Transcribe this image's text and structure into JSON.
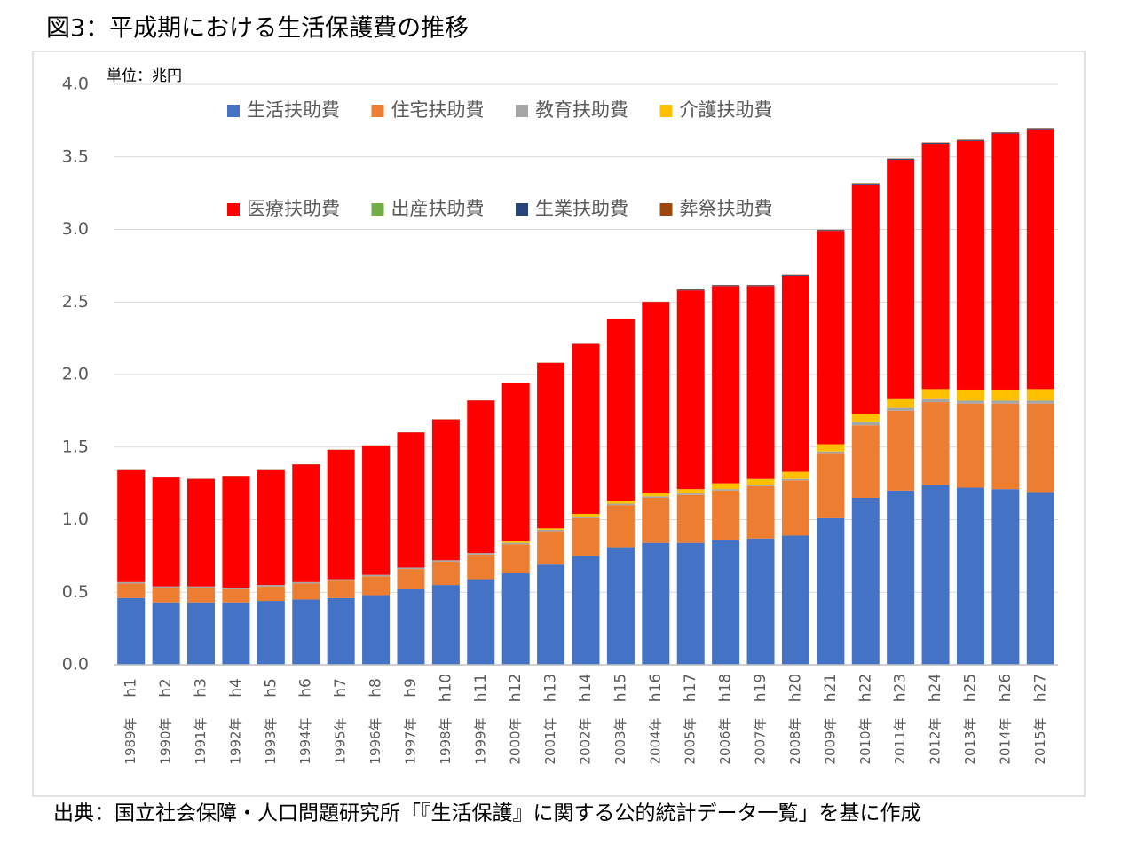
{
  "chart_data": {
    "type": "stacked-bar",
    "title": "図3：平成期における生活保護費の推移",
    "unit": "単位：兆円",
    "source": "出典：国立社会保障・人口問題研究所「『生活保護』に関する公的統計データ一覧」を基に作成",
    "categories": [
      "h1",
      "h2",
      "h3",
      "h4",
      "h5",
      "h6",
      "h7",
      "h8",
      "h9",
      "h10",
      "h11",
      "h12",
      "h13",
      "h14",
      "h15",
      "h16",
      "h17",
      "h18",
      "h19",
      "h20",
      "h21",
      "h22",
      "h23",
      "h24",
      "h25",
      "h26",
      "h27"
    ],
    "category_years": [
      "1989年",
      "1990年",
      "1991年",
      "1992年",
      "1993年",
      "1994年",
      "1995年",
      "1996年",
      "1997年",
      "1998年",
      "1999年",
      "2000年",
      "2001年",
      "2002年",
      "2003年",
      "2004年",
      "2005年",
      "2006年",
      "2007年",
      "2008年",
      "2009年",
      "2010年",
      "2011年",
      "2012年",
      "2013年",
      "2014年",
      "2015年"
    ],
    "ylim": [
      0,
      4
    ],
    "yticks": [
      {
        "value": 0,
        "label": "0.0"
      },
      0.5,
      {
        "value": 1,
        "label": "1.0"
      },
      1.5,
      {
        "value": 2,
        "label": "2.0"
      },
      2.5,
      {
        "value": 3,
        "label": "3.0"
      },
      3.5,
      {
        "value": 4,
        "label": "4.0"
      }
    ],
    "grid": true,
    "series": [
      {
        "name": "生活扶助費",
        "color": "#4472c4",
        "values": [
          0.46,
          0.43,
          0.43,
          0.43,
          0.44,
          0.45,
          0.46,
          0.48,
          0.52,
          0.55,
          0.59,
          0.63,
          0.69,
          0.75,
          0.81,
          0.84,
          0.84,
          0.86,
          0.87,
          0.89,
          1.01,
          1.15,
          1.2,
          1.24,
          1.22,
          1.21,
          1.19
        ]
      },
      {
        "name": "住宅扶助費",
        "color": "#ed7d31",
        "values": [
          0.1,
          0.1,
          0.1,
          0.09,
          0.1,
          0.11,
          0.12,
          0.13,
          0.14,
          0.16,
          0.17,
          0.2,
          0.23,
          0.26,
          0.29,
          0.31,
          0.33,
          0.34,
          0.36,
          0.38,
          0.45,
          0.5,
          0.55,
          0.57,
          0.58,
          0.59,
          0.61
        ]
      },
      {
        "name": "教育扶助費",
        "color": "#a5a5a5",
        "values": [
          0.01,
          0.01,
          0.01,
          0.01,
          0.01,
          0.01,
          0.01,
          0.01,
          0.01,
          0.01,
          0.01,
          0.01,
          0.01,
          0.01,
          0.01,
          0.01,
          0.01,
          0.01,
          0.01,
          0.01,
          0.01,
          0.02,
          0.02,
          0.02,
          0.02,
          0.02,
          0.02
        ]
      },
      {
        "name": "介護扶助費",
        "color": "#ffc000",
        "values": [
          0,
          0,
          0,
          0,
          0,
          0,
          0,
          0,
          0,
          0,
          0,
          0.01,
          0.01,
          0.02,
          0.02,
          0.02,
          0.03,
          0.04,
          0.04,
          0.05,
          0.05,
          0.06,
          0.06,
          0.07,
          0.07,
          0.07,
          0.08
        ]
      },
      {
        "name": "医療扶助費",
        "color": "#ff0000",
        "values": [
          0.77,
          0.75,
          0.74,
          0.77,
          0.79,
          0.81,
          0.89,
          0.89,
          0.93,
          0.97,
          1.05,
          1.09,
          1.14,
          1.17,
          1.25,
          1.32,
          1.37,
          1.36,
          1.33,
          1.35,
          1.47,
          1.58,
          1.65,
          1.69,
          1.72,
          1.77,
          1.79
        ]
      },
      {
        "name": "出産扶助費",
        "color": "#70ad47",
        "values": [
          0,
          0,
          0,
          0,
          0,
          0,
          0,
          0,
          0,
          0,
          0,
          0,
          0,
          0,
          0,
          0,
          0,
          0,
          0,
          0,
          0,
          0,
          0,
          0,
          0,
          0,
          0
        ]
      },
      {
        "name": "生業扶助費",
        "color": "#264478",
        "values": [
          0,
          0,
          0,
          0,
          0,
          0,
          0,
          0,
          0,
          0,
          0,
          0,
          0,
          0,
          0,
          0,
          0.005,
          0.005,
          0.005,
          0.005,
          0.005,
          0.006,
          0.006,
          0.006,
          0.006,
          0.006,
          0.006
        ]
      },
      {
        "name": "葬祭扶助費",
        "color": "#9e480e",
        "values": [
          0.002,
          0.002,
          0.002,
          0.002,
          0.002,
          0.002,
          0.002,
          0.002,
          0.002,
          0.002,
          0.002,
          0.002,
          0.002,
          0.002,
          0.002,
          0.002,
          0.002,
          0.002,
          0.002,
          0.002,
          0.003,
          0.003,
          0.003,
          0.003,
          0.003,
          0.003,
          0.003
        ]
      }
    ]
  }
}
